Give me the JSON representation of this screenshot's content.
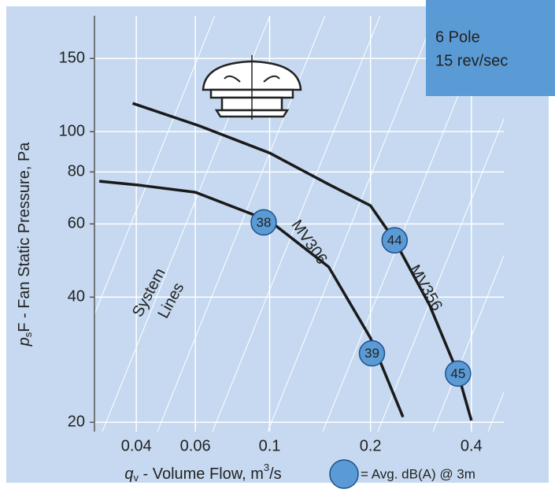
{
  "chart_data": {
    "type": "line",
    "annotations": [
      "6 Pole",
      "15 rev/sec",
      "System",
      "Lines"
    ],
    "y_label": {
      "italic": "p",
      "sub": "s",
      "rest": "F - Fan Static Pressure, Pa"
    },
    "x_label": {
      "italic": "q",
      "sub": "v",
      "rest": " - Volume Flow, m",
      "sup": "3",
      "end": "/s"
    },
    "legend_text": "= Avg. dB(A) @ 3m",
    "log_x": true,
    "log_y": true,
    "grid": true,
    "xlim": [
      0.03,
      0.5
    ],
    "xticks": [
      0.04,
      0.06,
      0.1,
      0.2,
      0.4
    ],
    "ylim": [
      19,
      190
    ],
    "yticks": [
      20,
      40,
      60,
      80,
      100,
      150
    ],
    "series": [
      {
        "name": "MV306",
        "color": "#1a1a1a",
        "x": [
          0.031,
          0.04,
          0.06,
          0.1,
          0.15,
          0.2,
          0.25
        ],
        "values": [
          76,
          74.5,
          71.5,
          61,
          47.3,
          31.9,
          20.6
        ]
      },
      {
        "name": "MV356",
        "color": "#1a1a1a",
        "x": [
          0.039,
          0.061,
          0.1,
          0.15,
          0.2,
          0.236,
          0.3,
          0.365,
          0.4
        ],
        "values": [
          117,
          103.6,
          88.9,
          74.7,
          66.4,
          54.8,
          38.3,
          26.2,
          20.2
        ]
      }
    ],
    "marker_color": "#5b9bd5",
    "markers": [
      {
        "x": 0.096,
        "y": 60.5,
        "value": 38
      },
      {
        "x": 0.202,
        "y": 29.3,
        "value": 39
      },
      {
        "x": 0.236,
        "y": 54.8,
        "value": 44
      },
      {
        "x": 0.365,
        "y": 26.2,
        "value": 45
      }
    ]
  }
}
